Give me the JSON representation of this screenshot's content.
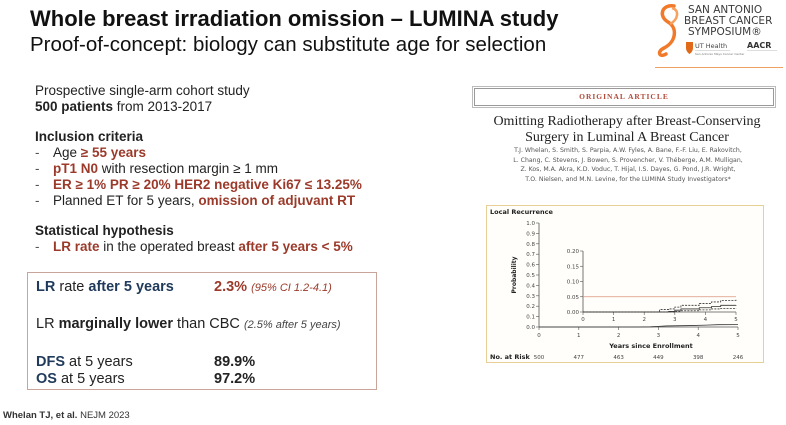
{
  "header": {
    "title": "Whole breast irradiation omission – LUMINA study",
    "subtitle": "Proof-of-concept: biology can substitute age for selection"
  },
  "logo": {
    "line1": "SAN ANTONIO",
    "line2": "BREAST CANCER",
    "line3": "SYMPOSIUM®",
    "sponsor1": "UT Health",
    "sponsor1_sub": "San Antonio Mays Cancer Center",
    "sponsor2": "AACR",
    "brand_color": "#f07a2a"
  },
  "intro": {
    "line1": "Prospective single-arm cohort study",
    "line2_bold": "500 patients",
    "line2_rest": " from 2013-2017"
  },
  "inclusion": {
    "heading": "Inclusion criteria",
    "items": [
      {
        "plain": "Age ",
        "highlight": "≥ 55 years",
        "tail": ""
      },
      {
        "plain": "",
        "highlight": "pT1 N0",
        "tail": " with resection margin ≥ 1 mm"
      },
      {
        "plain": "",
        "highlight": "ER ≥ 1% PR ≥ 20% HER2 negative Ki67 ≤ 13.25%",
        "tail": ""
      },
      {
        "plain": "Planned ET for 5 years, ",
        "highlight": "omission of adjuvant RT",
        "tail": ""
      }
    ]
  },
  "hypothesis": {
    "heading": "Statistical hypothesis",
    "item_highlight1": "LR rate",
    "item_plain": " in the operated breast ",
    "item_highlight2": "after 5 years < 5%"
  },
  "summary": {
    "lr_label_bold1": "LR",
    "lr_label_plain": " rate ",
    "lr_label_bold2": "after 5 years",
    "lr_value": "2.3%",
    "lr_ci": "(95% CI 1.2-4.1)",
    "cbc_plain1": "LR ",
    "cbc_bold": "marginally lower",
    "cbc_plain2": " than CBC ",
    "cbc_note": "(2.5% after 5 years)",
    "dfs_bold": "DFS",
    "dfs_plain": " at 5 years",
    "dfs_value": "89.9%",
    "os_bold": "OS",
    "os_plain": " at 5 years",
    "os_value": "97.2%"
  },
  "reference": {
    "bold": "Whelan TJ, et al.",
    "plain": " NEJM 2023"
  },
  "article": {
    "banner": "ORIGINAL ARTICLE",
    "title_line1": "Omitting Radiotherapy after Breast-Conserving",
    "title_line2": "Surgery in Luminal A Breast Cancer",
    "authors": [
      "T.J. Whelan, S. Smith, S. Parpia, A.W. Fyles, A. Bane, F.-F. Liu, E. Rakovitch,",
      "L. Chang, C. Stevens, J. Bowen, S. Provencher, V. Théberge, A.M. Mulligan,",
      "Z. Kos, M.A. Akra, K.D. Voduc, T. Hijal, I.S. Dayes, G. Pond, J.R. Wright,",
      "T.O. Nielsen, and M.N. Levine, for the LUMINA Study Investigators*"
    ]
  },
  "chart_data": {
    "type": "line",
    "title": "Local Recurrence",
    "xlabel": "Years since Enrollment",
    "ylabel": "Probability",
    "xlim": [
      0,
      5
    ],
    "ylim": [
      0,
      1.0
    ],
    "x_ticks": [
      0,
      1,
      2,
      3,
      4,
      5
    ],
    "y_ticks": [
      "0.0",
      "0.1",
      "0.2",
      "0.3",
      "0.4",
      "0.5",
      "0.6",
      "0.7",
      "0.8",
      "0.9",
      "1.0"
    ],
    "inset": {
      "xlim": [
        0,
        5
      ],
      "ylim": [
        0,
        0.2
      ],
      "x_ticks": [
        0,
        1,
        2,
        3,
        4,
        5
      ],
      "y_ticks": [
        "0.00",
        "0.05",
        "0.10",
        "0.15",
        "0.20"
      ],
      "reference_line": {
        "y": 0.05,
        "color": "#d9937a"
      }
    },
    "series": [
      {
        "name": "Local recurrence",
        "style": "solid",
        "x": [
          0,
          2.5,
          2.8,
          3.0,
          3.2,
          3.8,
          4.2,
          4.5,
          5.0
        ],
        "y": [
          0,
          0,
          0.002,
          0.006,
          0.01,
          0.014,
          0.018,
          0.022,
          0.023
        ]
      },
      {
        "name": "Upper 95% CI",
        "style": "dashed",
        "x": [
          0,
          2.5,
          2.8,
          3.0,
          3.2,
          3.8,
          4.2,
          4.5,
          5.0
        ],
        "y": [
          0,
          0.008,
          0.01,
          0.016,
          0.022,
          0.028,
          0.033,
          0.038,
          0.04
        ]
      },
      {
        "name": "Lower 95% CI",
        "style": "dashed",
        "x": [
          0,
          2.5,
          2.8,
          3.0,
          3.2,
          3.8,
          4.2,
          4.5,
          5.0
        ],
        "y": [
          0,
          0,
          0,
          0.002,
          0.004,
          0.007,
          0.01,
          0.012,
          0.013
        ]
      }
    ],
    "at_risk": {
      "label": "No. at Risk",
      "values": [
        500,
        477,
        463,
        449,
        398,
        246
      ]
    },
    "legend": "none",
    "grid": false
  }
}
